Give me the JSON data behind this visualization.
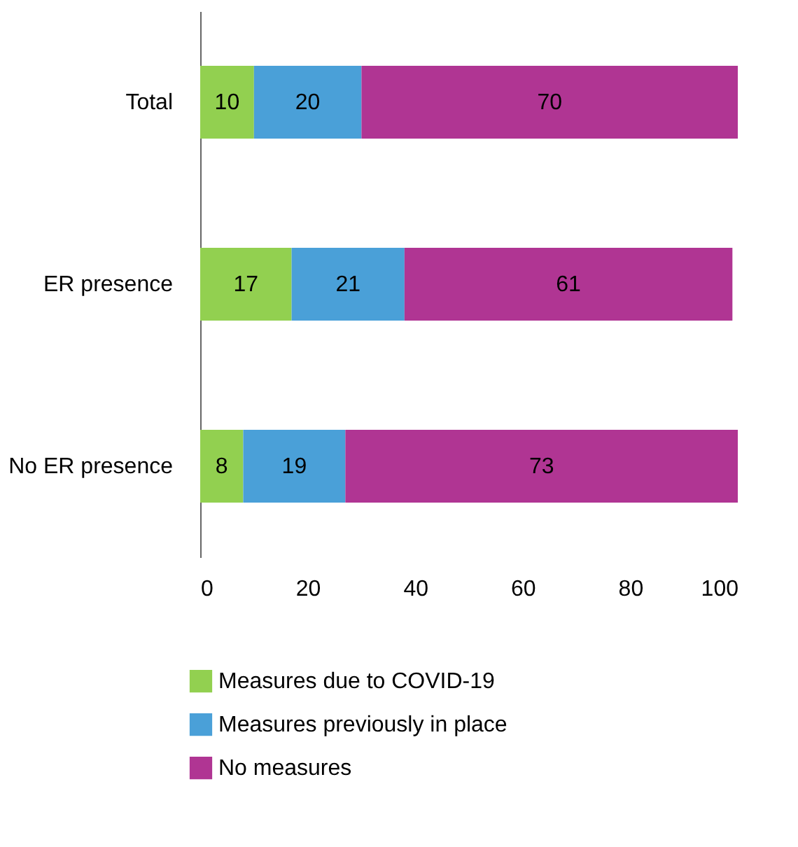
{
  "chart_data": {
    "type": "bar",
    "orientation": "horizontal",
    "stacked": true,
    "categories": [
      "Total",
      "ER presence",
      "No ER presence"
    ],
    "series": [
      {
        "name": "Measures due to COVID-19",
        "color": "#92d050",
        "values": [
          10,
          17,
          8
        ]
      },
      {
        "name": "Measures previously in place",
        "color": "#4aa0d8",
        "values": [
          20,
          21,
          19
        ]
      },
      {
        "name": "No measures",
        "color": "#b03593",
        "values": [
          70,
          61,
          73
        ]
      }
    ],
    "xlim": [
      0,
      100
    ],
    "xticks": [
      0,
      20,
      40,
      60,
      80,
      100
    ],
    "data_labels": true,
    "grid": false,
    "legend": "bottom"
  }
}
